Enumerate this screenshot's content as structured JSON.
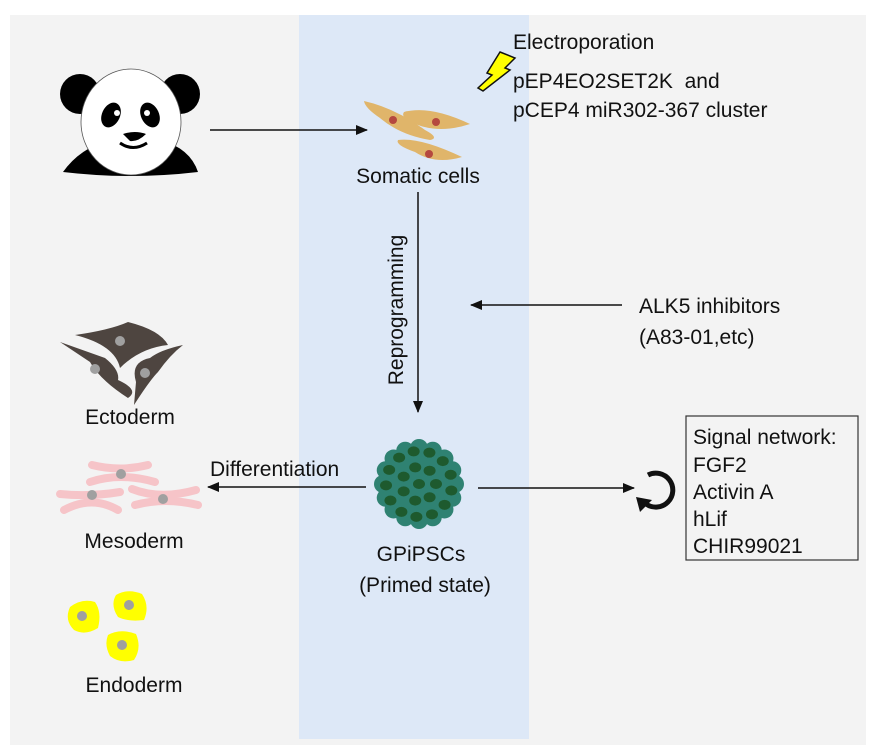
{
  "colors": {
    "background": "#f3f3f3",
    "highlight_band": "#dde8f7",
    "somatic_cell": "#e0b56a",
    "somatic_nucleus": "#b5483f",
    "ectoderm_cell": "#4e4540",
    "mesoderm_cell": "#f6c4c8",
    "endoderm_cell": "#ffff00",
    "nucleus_gray": "#a0a0a0",
    "ipsc_colony": "#2f8272",
    "ipsc_nucleus": "#1e5a2e",
    "bolt": "#ffff00"
  },
  "source": {
    "icon": "panda-icon"
  },
  "somatic": {
    "label": "Somatic cells"
  },
  "electroporation": {
    "title": "Electroporation",
    "line1": "pEP4EO2SET2K  and",
    "line2": "pCEP4 miR302-367 cluster",
    "icon": "lightning-bolt-icon"
  },
  "reprogramming": {
    "label": "Reprogramming"
  },
  "alk5": {
    "line1": "ALK5 inhibitors",
    "line2": "(A83-01,etc)"
  },
  "ipsc": {
    "line1": "GPiPSCs",
    "line2": "(Primed state)"
  },
  "differentiation": {
    "label": "Differentiation"
  },
  "lineages": {
    "ectoderm": "Ectoderm",
    "mesoderm": "Mesoderm",
    "endoderm": "Endoderm"
  },
  "signal_network": {
    "title": "Signal network:",
    "items": [
      "FGF2",
      "Activin A",
      "hLif",
      "CHIR99021"
    ],
    "icon": "circular-arrow-icon"
  }
}
